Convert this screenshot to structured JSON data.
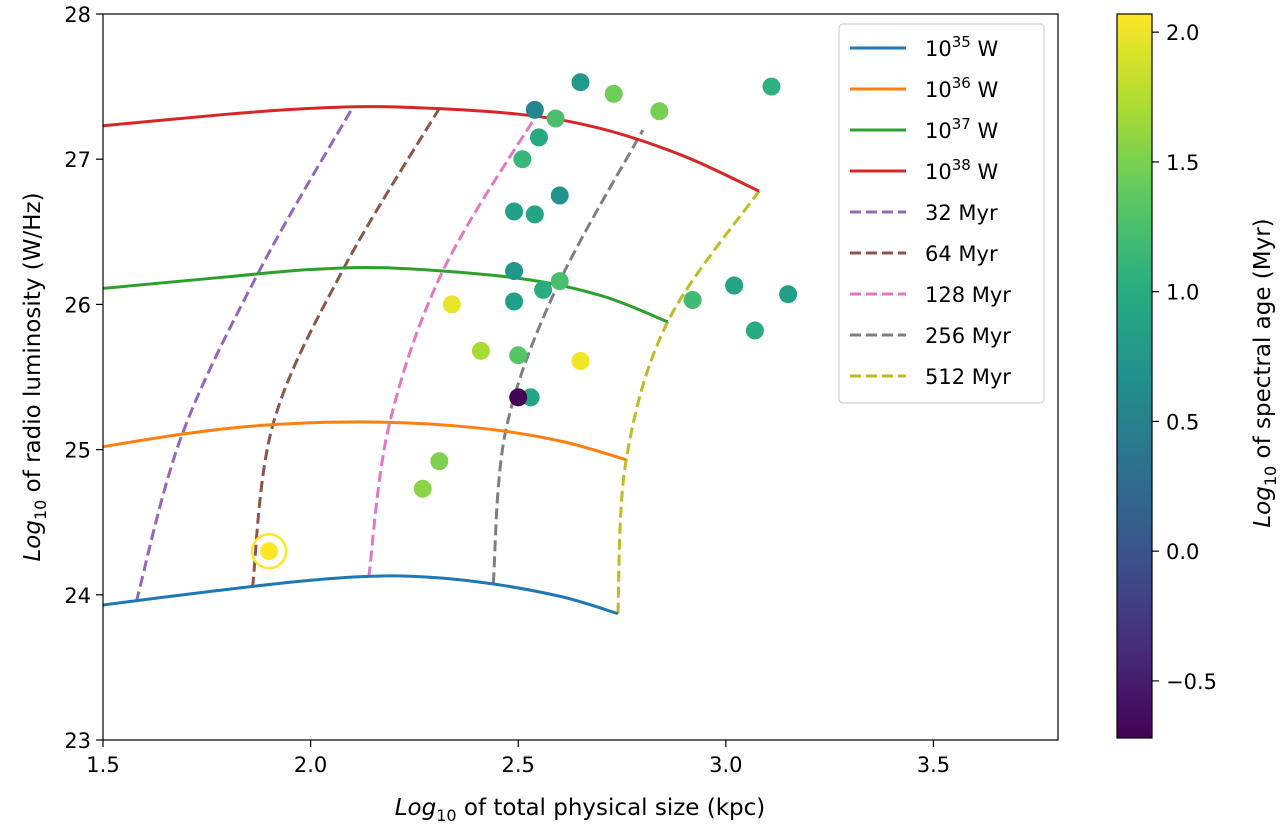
{
  "chart_data": {
    "type": "scatter",
    "xlabel_main": "Log",
    "xlabel_sub": "10",
    "xlabel_rest": " of total physical size (kpc)",
    "ylabel_main": "Log",
    "ylabel_sub": "10",
    "ylabel_rest": " of radio luminosity (W/Hz)",
    "cbar_label_main": "Log",
    "cbar_label_sub": "10",
    "cbar_label_rest": " of spectral age (Myr)",
    "xlim": [
      1.5,
      3.8
    ],
    "ylim": [
      23,
      28
    ],
    "clim": [
      -0.72,
      2.07
    ],
    "xticks": [
      "1.5",
      "2.0",
      "2.5",
      "3.0",
      "3.5"
    ],
    "yticks": [
      "23",
      "24",
      "25",
      "26",
      "27",
      "28"
    ],
    "cticks": [
      "−0.5",
      "0.0",
      "0.5",
      "1.0",
      "1.5",
      "2.0"
    ],
    "legend_position": "top-right",
    "power_series": [
      {
        "name_base": "10",
        "name_exp": "35",
        "name_unit": " W",
        "color": "#1f77b4",
        "x": [
          1.5,
          1.75,
          2.0,
          2.2,
          2.4,
          2.6,
          2.74
        ],
        "y": [
          23.93,
          24.02,
          24.1,
          24.13,
          24.09,
          23.99,
          23.87
        ]
      },
      {
        "name_base": "10",
        "name_exp": "36",
        "name_unit": " W",
        "color": "#ff7f0e",
        "x": [
          1.5,
          1.7,
          1.9,
          2.15,
          2.4,
          2.6,
          2.76
        ],
        "y": [
          25.02,
          25.11,
          25.17,
          25.19,
          25.15,
          25.06,
          24.93
        ]
      },
      {
        "name_base": "10",
        "name_exp": "37",
        "name_unit": " W",
        "color": "#2ca02c",
        "x": [
          1.5,
          1.8,
          2.0,
          2.2,
          2.5,
          2.7,
          2.86
        ],
        "y": [
          26.11,
          26.19,
          26.24,
          26.25,
          26.18,
          26.06,
          25.88
        ]
      },
      {
        "name_base": "10",
        "name_exp": "38",
        "name_unit": " W",
        "color": "#d62728",
        "x": [
          1.5,
          1.8,
          2.0,
          2.2,
          2.5,
          2.7,
          2.9,
          3.08
        ],
        "y": [
          27.23,
          27.31,
          27.35,
          27.36,
          27.31,
          27.21,
          27.02,
          26.78
        ]
      }
    ],
    "age_series": [
      {
        "name": "32 Myr",
        "color": "#9467bd",
        "x": [
          1.58,
          1.69,
          1.88,
          2.1
        ],
        "y": [
          23.95,
          25.1,
          26.25,
          27.35
        ]
      },
      {
        "name": "64 Myr",
        "color": "#8c564b",
        "x": [
          1.86,
          1.91,
          2.08,
          2.31
        ],
        "y": [
          24.05,
          25.18,
          26.25,
          27.35
        ]
      },
      {
        "name": "128 Myr",
        "color": "#e377c2",
        "x": [
          2.14,
          2.19,
          2.32,
          2.55
        ],
        "y": [
          24.12,
          25.18,
          26.24,
          27.33
        ]
      },
      {
        "name": "256 Myr",
        "color": "#7f7f7f",
        "x": [
          2.44,
          2.47,
          2.59,
          2.8
        ],
        "y": [
          24.08,
          25.13,
          26.1,
          27.2
        ]
      },
      {
        "name": "512 Myr",
        "color": "#bcbd22",
        "x": [
          2.74,
          2.76,
          2.86,
          3.08
        ],
        "y": [
          23.87,
          24.93,
          25.88,
          26.78
        ]
      }
    ],
    "points": [
      {
        "x": 2.65,
        "y": 27.53,
        "c": 0.78
      },
      {
        "x": 2.73,
        "y": 27.45,
        "c": 1.45
      },
      {
        "x": 3.11,
        "y": 27.5,
        "c": 1.05
      },
      {
        "x": 2.54,
        "y": 27.34,
        "c": 0.55
      },
      {
        "x": 2.59,
        "y": 27.28,
        "c": 1.25
      },
      {
        "x": 2.84,
        "y": 27.33,
        "c": 1.5
      },
      {
        "x": 2.55,
        "y": 27.15,
        "c": 0.95
      },
      {
        "x": 2.51,
        "y": 27.0,
        "c": 1.15
      },
      {
        "x": 2.6,
        "y": 26.75,
        "c": 0.72
      },
      {
        "x": 2.49,
        "y": 26.64,
        "c": 0.85
      },
      {
        "x": 2.54,
        "y": 26.62,
        "c": 0.92
      },
      {
        "x": 2.49,
        "y": 26.23,
        "c": 0.75
      },
      {
        "x": 2.6,
        "y": 26.16,
        "c": 1.25
      },
      {
        "x": 2.56,
        "y": 26.1,
        "c": 1.0
      },
      {
        "x": 2.49,
        "y": 26.02,
        "c": 0.85
      },
      {
        "x": 2.92,
        "y": 26.03,
        "c": 1.2
      },
      {
        "x": 3.02,
        "y": 26.13,
        "c": 0.9
      },
      {
        "x": 3.15,
        "y": 26.07,
        "c": 0.85
      },
      {
        "x": 3.07,
        "y": 25.82,
        "c": 0.98
      },
      {
        "x": 2.34,
        "y": 26.0,
        "c": 1.98
      },
      {
        "x": 2.41,
        "y": 25.68,
        "c": 1.7
      },
      {
        "x": 2.5,
        "y": 25.65,
        "c": 1.32
      },
      {
        "x": 2.65,
        "y": 25.61,
        "c": 2.02
      },
      {
        "x": 2.53,
        "y": 25.36,
        "c": 0.9
      },
      {
        "x": 2.5,
        "y": 25.36,
        "c": -0.72
      },
      {
        "x": 2.31,
        "y": 24.92,
        "c": 1.52
      },
      {
        "x": 2.27,
        "y": 24.73,
        "c": 1.58
      },
      {
        "x": 1.9,
        "y": 24.3,
        "c": 2.07
      }
    ],
    "highlight": {
      "x": 1.9,
      "y": 24.3,
      "color": "#fde725"
    }
  }
}
